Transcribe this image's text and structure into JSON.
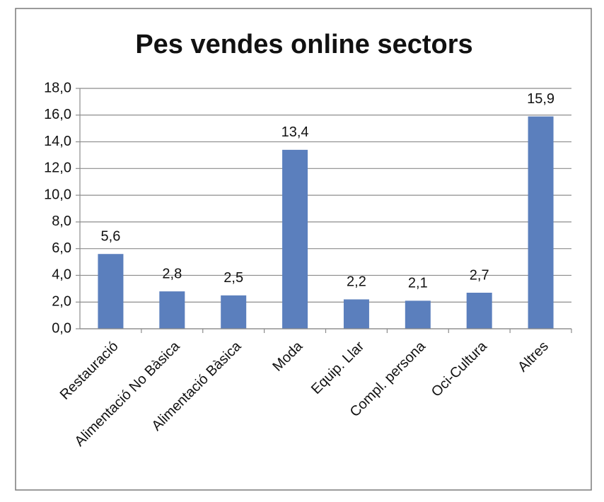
{
  "chart_data": {
    "type": "bar",
    "title": "Pes vendes online sectors",
    "categories": [
      "Restauració",
      "Alimentació No Bàsica",
      "Alimentació Bàsica",
      "Moda",
      "Equip. Llar",
      "Compl. persona",
      "Oci-Cultura",
      "Altres"
    ],
    "values": [
      5.6,
      2.8,
      2.5,
      13.4,
      2.2,
      2.1,
      2.7,
      15.9
    ],
    "value_labels": [
      "5,6",
      "2,8",
      "2,5",
      "13,4",
      "2,2",
      "2,1",
      "2,7",
      "15,9"
    ],
    "color": "#5b7fbd",
    "ylim": [
      0,
      18
    ],
    "yticks": [
      {
        "value": 0,
        "label": "0,0"
      },
      {
        "value": 2,
        "label": "2,0"
      },
      {
        "value": 4,
        "label": "4,0"
      },
      {
        "value": 6,
        "label": "6,0"
      },
      {
        "value": 8,
        "label": "8,0"
      },
      {
        "value": 10,
        "label": "10,0"
      },
      {
        "value": 12,
        "label": "12,0"
      },
      {
        "value": 14,
        "label": "14,0"
      },
      {
        "value": 16,
        "label": "16,0"
      },
      {
        "value": 18,
        "label": "18,0"
      }
    ],
    "grid": true
  }
}
